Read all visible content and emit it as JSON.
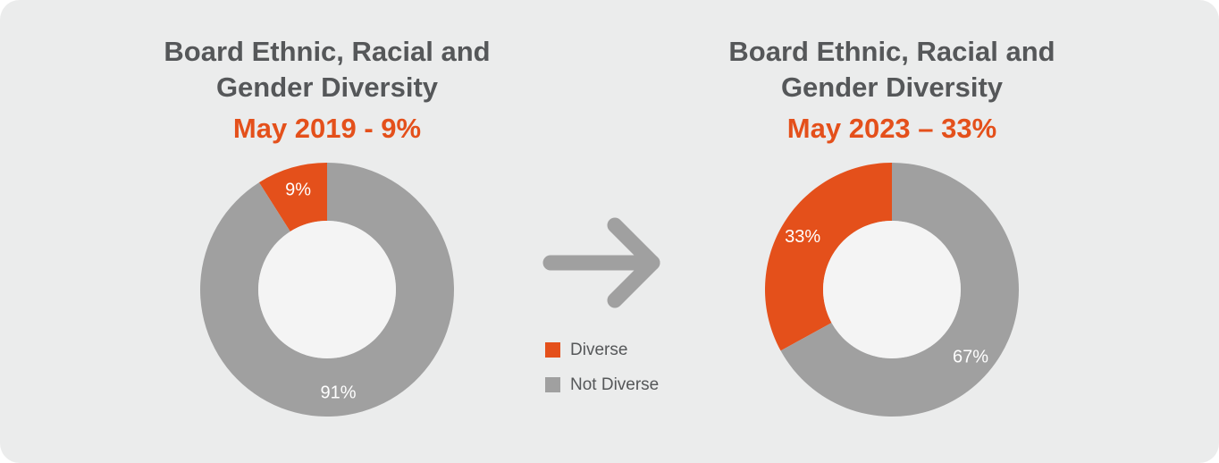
{
  "colors": {
    "diverse": "#e4501b",
    "not_diverse": "#a0a0a0",
    "hole": "#f4f4f4",
    "background": "#ebecec",
    "arrow": "#a0a0a0"
  },
  "legend": [
    {
      "label": "Diverse",
      "color": "#e4501b"
    },
    {
      "label": "Not Diverse",
      "color": "#a0a0a0"
    }
  ],
  "chart_data": [
    {
      "type": "pie",
      "donut": true,
      "title": "Board Ethnic, Racial and Gender Diversity",
      "title_lines": [
        "Board Ethnic, Racial and",
        "Gender Diversity"
      ],
      "subtitle": "May 2019 - 9%",
      "slices": [
        {
          "label": "Diverse",
          "value": 9,
          "data_label": "9%"
        },
        {
          "label": "Not Diverse",
          "value": 91,
          "data_label": "91%"
        }
      ]
    },
    {
      "type": "pie",
      "donut": true,
      "title": "Board Ethnic, Racial and Gender Diversity",
      "title_lines": [
        "Board Ethnic, Racial and",
        "Gender Diversity"
      ],
      "subtitle": "May 2023 – 33%",
      "slices": [
        {
          "label": "Diverse",
          "value": 33,
          "data_label": "33%"
        },
        {
          "label": "Not Diverse",
          "value": 67,
          "data_label": "67%"
        }
      ]
    }
  ]
}
